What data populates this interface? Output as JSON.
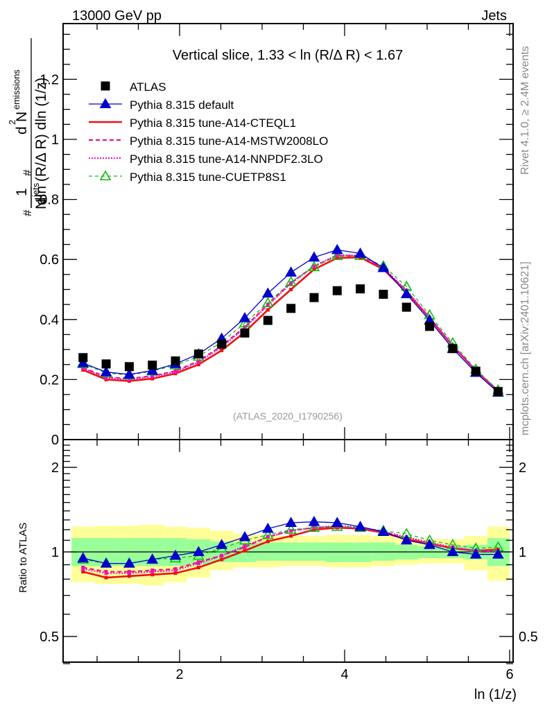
{
  "header": {
    "left_label": "13000 GeV pp",
    "right_label": "Jets"
  },
  "side_labels": {
    "rivet": "Rivet 4.1.0, ≥ 2.4M events",
    "mcplots": "mcplots.cern.ch [arXiv:2401.10621]"
  },
  "chart_data": [
    {
      "type": "scatter",
      "panel": "main",
      "title": "Vertical slice, 1.33 < ln (R/Δ R) < 1.67",
      "analysis_label": "(ATLAS_2020_I1790256)",
      "ylabel": "1/N_jets d²N_emissions / dln (R/Δ R) dln (1/z)",
      "ylabel_parts": {
        "one": "1",
        "njets": "N",
        "njets_sub": "jets",
        "d2": "d",
        "d2_sup": "2",
        "nemis": "N",
        "nemis_sub": "emissions",
        "denom": "dln (R/Δ R) dln (1/z)",
        "hash": "#"
      },
      "xlabel": "ln (1/z)",
      "xlim": [
        0.69,
        6.03
      ],
      "ylim": [
        0,
        1.38
      ],
      "yticks": [
        0,
        0.2,
        0.4,
        0.6,
        0.8,
        1,
        1.2
      ],
      "ytick_labels": [
        "0",
        "0.2",
        "0.4",
        "0.6",
        "0.8",
        "1",
        "1.2"
      ],
      "xticks": [
        2,
        4,
        6
      ],
      "legend_position": "top-left",
      "x": [
        0.83,
        1.11,
        1.39,
        1.67,
        1.95,
        2.23,
        2.51,
        2.79,
        3.07,
        3.35,
        3.63,
        3.91,
        4.19,
        4.47,
        4.75,
        5.03,
        5.31,
        5.59,
        5.86
      ],
      "series": [
        {
          "name": "ATLAS",
          "style": "data",
          "color": "#000000",
          "values": [
            0.273,
            0.252,
            0.243,
            0.248,
            0.262,
            0.285,
            0.318,
            0.355,
            0.397,
            0.437,
            0.473,
            0.496,
            0.502,
            0.484,
            0.441,
            0.377,
            0.303,
            0.228,
            0.16
          ]
        },
        {
          "name": "Pythia 8.315 default",
          "style": "solid-triangle",
          "color": "#0000cc",
          "values": [
            0.255,
            0.225,
            0.217,
            0.23,
            0.252,
            0.285,
            0.337,
            0.405,
            0.487,
            0.557,
            0.607,
            0.632,
            0.62,
            0.572,
            0.485,
            0.397,
            0.303,
            0.223,
            0.157
          ]
        },
        {
          "name": "Pythia 8.315 tune-A14-CTEQL1",
          "style": "solid-thick",
          "color": "#ee1111",
          "values": [
            0.232,
            0.2,
            0.195,
            0.203,
            0.22,
            0.25,
            0.297,
            0.358,
            0.432,
            0.5,
            0.567,
            0.605,
            0.607,
            0.567,
            0.492,
            0.405,
            0.312,
            0.23,
            0.162
          ]
        },
        {
          "name": "Pythia 8.315 tune-A14-MSTW2008LO",
          "style": "dashed",
          "color": "#ee1177",
          "values": [
            0.24,
            0.208,
            0.203,
            0.212,
            0.228,
            0.262,
            0.312,
            0.375,
            0.45,
            0.522,
            0.577,
            0.612,
            0.612,
            0.57,
            0.495,
            0.405,
            0.313,
            0.23,
            0.162
          ]
        },
        {
          "name": "Pythia 8.315 tune-A14-NNPDF2.3LO",
          "style": "dotted",
          "color": "#ee11cc",
          "values": [
            0.238,
            0.205,
            0.2,
            0.21,
            0.225,
            0.258,
            0.308,
            0.372,
            0.448,
            0.52,
            0.578,
            0.615,
            0.614,
            0.572,
            0.497,
            0.407,
            0.314,
            0.231,
            0.161
          ]
        },
        {
          "name": "Pythia 8.315 tune-CUETP8S1",
          "style": "dashed-open-triangle",
          "color": "#11bb11",
          "values": [
            0.252,
            0.222,
            0.215,
            0.228,
            0.248,
            0.277,
            0.325,
            0.388,
            0.455,
            0.525,
            0.575,
            0.612,
            0.612,
            0.578,
            0.51,
            0.415,
            0.322,
            0.234,
            0.165
          ]
        }
      ]
    },
    {
      "type": "line",
      "panel": "ratio",
      "ylabel": "Ratio to ATLAS",
      "xlabel": "ln (1/z)",
      "yscale": "log",
      "ylim": [
        0.4,
        2.5
      ],
      "yticks": [
        0.5,
        1,
        2
      ],
      "ytick_labels": [
        "0.5",
        "1",
        "2"
      ],
      "xticks": [
        2,
        4,
        6
      ],
      "xtick_labels": [
        "2",
        "4",
        "6"
      ],
      "bin_edges": [
        0.69,
        0.97,
        1.25,
        1.53,
        1.81,
        2.09,
        2.37,
        2.65,
        2.93,
        3.21,
        3.49,
        3.77,
        4.05,
        4.33,
        4.61,
        4.89,
        5.17,
        5.45,
        5.73,
        6.0
      ],
      "bands": {
        "total": {
          "color": "#ffff99",
          "upper": [
            1.23,
            1.24,
            1.24,
            1.25,
            1.23,
            1.22,
            1.19,
            1.16,
            1.15,
            1.14,
            1.14,
            1.15,
            1.15,
            1.14,
            1.12,
            1.11,
            1.11,
            1.14,
            1.23
          ],
          "lower": [
            0.78,
            0.77,
            0.77,
            0.76,
            0.78,
            0.81,
            0.86,
            0.88,
            0.88,
            0.89,
            0.89,
            0.88,
            0.88,
            0.89,
            0.9,
            0.91,
            0.91,
            0.86,
            0.79
          ]
        },
        "stat": {
          "color": "#99ff99",
          "upper": [
            1.12,
            1.12,
            1.12,
            1.12,
            1.12,
            1.11,
            1.09,
            1.08,
            1.08,
            1.08,
            1.08,
            1.08,
            1.08,
            1.08,
            1.06,
            1.05,
            1.05,
            1.06,
            1.12
          ],
          "lower": [
            0.89,
            0.89,
            0.89,
            0.89,
            0.89,
            0.9,
            0.92,
            0.92,
            0.93,
            0.93,
            0.93,
            0.92,
            0.92,
            0.93,
            0.94,
            0.95,
            0.95,
            0.94,
            0.89
          ]
        }
      },
      "series": [
        {
          "name": "Pythia 8.315 default",
          "color": "#0000cc",
          "values": [
            0.95,
            0.91,
            0.91,
            0.94,
            0.97,
            1.0,
            1.06,
            1.13,
            1.21,
            1.27,
            1.28,
            1.27,
            1.23,
            1.18,
            1.1,
            1.06,
            1.0,
            0.98,
            0.98
          ]
        },
        {
          "name": "Pythia 8.315 tune-A14-CTEQL1",
          "color": "#ee1111",
          "values": [
            0.85,
            0.81,
            0.82,
            0.83,
            0.84,
            0.88,
            0.94,
            1.01,
            1.09,
            1.14,
            1.2,
            1.22,
            1.21,
            1.17,
            1.11,
            1.07,
            1.03,
            1.01,
            1.02
          ]
        },
        {
          "name": "Pythia 8.315 tune-A14-MSTW2008LO",
          "color": "#ee1177",
          "values": [
            0.88,
            0.85,
            0.85,
            0.86,
            0.87,
            0.92,
            0.97,
            1.04,
            1.13,
            1.19,
            1.22,
            1.23,
            1.22,
            1.18,
            1.12,
            1.07,
            1.03,
            1.01,
            1.01
          ]
        },
        {
          "name": "Pythia 8.315 tune-A14-NNPDF2.3LO",
          "color": "#ee11cc",
          "values": [
            0.87,
            0.84,
            0.84,
            0.85,
            0.86,
            0.91,
            0.97,
            1.05,
            1.13,
            1.19,
            1.22,
            1.24,
            1.22,
            1.18,
            1.13,
            1.08,
            1.04,
            1.01,
            1.0
          ]
        },
        {
          "name": "Pythia 8.315 tune-CUETP8S1",
          "color": "#11bb11",
          "values": [
            0.94,
            0.91,
            0.91,
            0.94,
            0.95,
            0.97,
            1.03,
            1.1,
            1.15,
            1.2,
            1.22,
            1.23,
            1.22,
            1.19,
            1.16,
            1.1,
            1.06,
            1.03,
            1.04
          ]
        }
      ]
    }
  ]
}
